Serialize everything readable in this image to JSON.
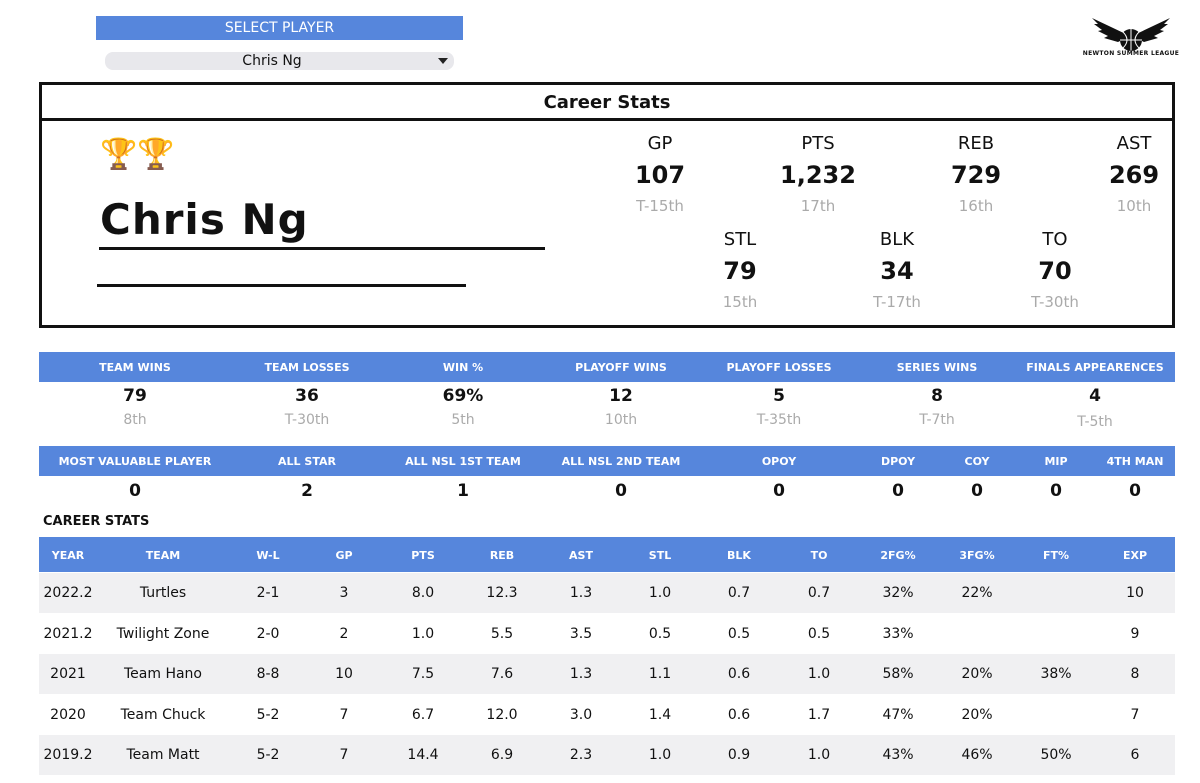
{
  "select": {
    "label": "SELECT PLAYER",
    "value": "Chris Ng"
  },
  "logo": {
    "text": "NEWTON SUMMER LEAGUE"
  },
  "career": {
    "title": "Career Stats",
    "trophies": "🏆🏆",
    "player": "Chris Ng",
    "stats": [
      {
        "label": "GP",
        "value": "107",
        "rank": "T-15th"
      },
      {
        "label": "PTS",
        "value": "1,232",
        "rank": "17th"
      },
      {
        "label": "REB",
        "value": "729",
        "rank": "16th"
      },
      {
        "label": "AST",
        "value": "269",
        "rank": "10th"
      },
      {
        "label": "STL",
        "value": "79",
        "rank": "15th"
      },
      {
        "label": "BLK",
        "value": "34",
        "rank": "T-17th"
      },
      {
        "label": "TO",
        "value": "70",
        "rank": "T-30th"
      }
    ]
  },
  "team_stats": [
    {
      "label": "TEAM WINS",
      "value": "79",
      "rank": "8th"
    },
    {
      "label": "TEAM LOSSES",
      "value": "36",
      "rank": "T-30th"
    },
    {
      "label": "WIN %",
      "value": "69%",
      "rank": "5th"
    },
    {
      "label": "PLAYOFF WINS",
      "value": "12",
      "rank": "10th"
    },
    {
      "label": "PLAYOFF LOSSES",
      "value": "5",
      "rank": "T-35th"
    },
    {
      "label": "SERIES WINS",
      "value": "8",
      "rank": "T-7th"
    },
    {
      "label": "FINALS APPEARENCES",
      "value": "4",
      "rank": "T-5th"
    }
  ],
  "awards": [
    {
      "label": "MOST VALUABLE PLAYER",
      "value": "0"
    },
    {
      "label": "ALL STAR",
      "value": "2"
    },
    {
      "label": "ALL NSL 1ST TEAM",
      "value": "1"
    },
    {
      "label": "ALL NSL 2ND TEAM",
      "value": "0"
    },
    {
      "label": "OPOY",
      "value": "0"
    },
    {
      "label": "DPOY",
      "value": "0"
    },
    {
      "label": "COY",
      "value": "0"
    },
    {
      "label": "MIP",
      "value": "0"
    },
    {
      "label": "4TH MAN",
      "value": "0"
    }
  ],
  "table": {
    "title": "CAREER STATS",
    "columns": [
      "YEAR",
      "TEAM",
      "W-L",
      "GP",
      "PTS",
      "REB",
      "AST",
      "STL",
      "BLK",
      "TO",
      "2FG%",
      "3FG%",
      "FT%",
      "EXP"
    ],
    "rows": [
      [
        "2022.2",
        "Turtles",
        "2-1",
        "3",
        "8.0",
        "12.3",
        "1.3",
        "1.0",
        "0.7",
        "0.7",
        "32%",
        "22%",
        null,
        "10"
      ],
      [
        "2021.2",
        "Twilight Zone",
        "2-0",
        "2",
        "1.0",
        "5.5",
        "3.5",
        "0.5",
        "0.5",
        "0.5",
        "33%",
        null,
        null,
        "9"
      ],
      [
        "2021",
        "Team Hano",
        "8-8",
        "10",
        "7.5",
        "7.6",
        "1.3",
        "1.1",
        "0.6",
        "1.0",
        "58%",
        "20%",
        "38%",
        "8"
      ],
      [
        "2020",
        "Team Chuck",
        "5-2",
        "7",
        "6.7",
        "12.0",
        "3.0",
        "1.4",
        "0.6",
        "1.7",
        "47%",
        "20%",
        null,
        "7"
      ],
      [
        "2019.2",
        "Team Matt",
        "5-2",
        "7",
        "14.4",
        "6.9",
        "2.3",
        "1.0",
        "0.9",
        "1.0",
        "43%",
        "46%",
        "50%",
        "6"
      ]
    ]
  }
}
